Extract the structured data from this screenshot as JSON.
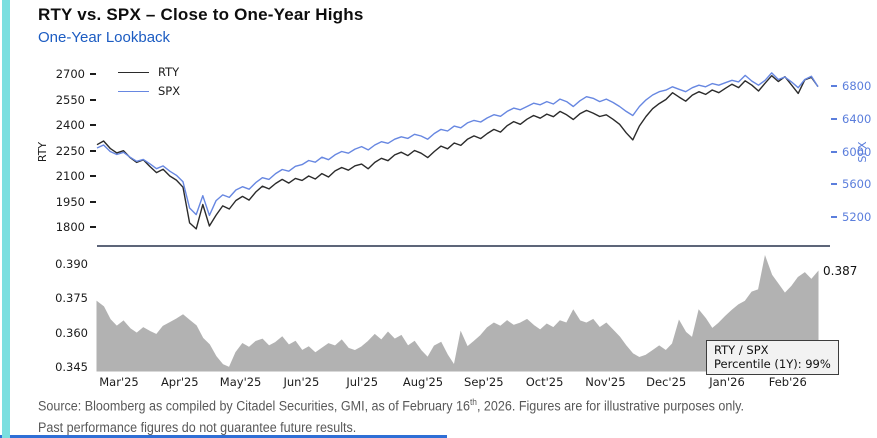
{
  "accent_color": "#7bdfe0",
  "bottom_rule_color": "#2f6fd6",
  "separator_color": "#5d6579",
  "subtitle_color": "#1c5cc2",
  "right_axis_color": "#5b7edc",
  "header": {
    "title": "RTY vs. SPX – Close to One-Year Highs",
    "subtitle": "One-Year Lookback"
  },
  "chart_data": [
    {
      "type": "line",
      "panel": "price",
      "ylabel_left": "RTY",
      "ylabel_right": "SPX",
      "y_left_ticks": [
        "2700",
        "2550",
        "2400",
        "2250",
        "2100",
        "1950",
        "1800"
      ],
      "y_right_ticks": [
        "6800",
        "6400",
        "6000",
        "5600",
        "5200"
      ],
      "y_left_range": [
        1800,
        2700
      ],
      "y_right_range": [
        5200,
        6800
      ],
      "x_labels": [
        "Mar'25",
        "Apr'25",
        "May'25",
        "Jun'25",
        "Jul'25",
        "Aug'25",
        "Sep'25",
        "Oct'25",
        "Nov'25",
        "Dec'25",
        "Jan'26",
        "Feb'26"
      ],
      "legend": [
        {
          "label": "RTY",
          "color": "#2b2b2b"
        },
        {
          "label": "SPX",
          "color": "#6787e1"
        }
      ],
      "series": [
        {
          "name": "RTY",
          "axis": "left",
          "color": "#2b2b2b",
          "values": [
            2290,
            2312,
            2268,
            2242,
            2255,
            2214,
            2186,
            2201,
            2162,
            2126,
            2146,
            2106,
            2082,
            2040,
            1830,
            1795,
            1938,
            1812,
            1876,
            1930,
            1912,
            1962,
            1986,
            1964,
            2012,
            2046,
            2030,
            2062,
            2086,
            2064,
            2092,
            2080,
            2106,
            2088,
            2120,
            2100,
            2136,
            2156,
            2140,
            2166,
            2176,
            2148,
            2186,
            2210,
            2196,
            2230,
            2246,
            2226,
            2256,
            2240,
            2214,
            2250,
            2282,
            2266,
            2300,
            2286,
            2322,
            2342,
            2326,
            2356,
            2380,
            2364,
            2402,
            2426,
            2410,
            2440,
            2462,
            2446,
            2470,
            2455,
            2486,
            2466,
            2438,
            2472,
            2492,
            2476,
            2456,
            2466,
            2440,
            2410,
            2360,
            2318,
            2400,
            2456,
            2502,
            2532,
            2556,
            2596,
            2570,
            2546,
            2582,
            2602,
            2586,
            2612,
            2596,
            2622,
            2646,
            2626,
            2666,
            2640,
            2606,
            2652,
            2696,
            2662,
            2690,
            2642,
            2592,
            2672,
            2686,
            2632
          ]
        },
        {
          "name": "SPX",
          "axis": "right",
          "color": "#6787e1",
          "values": [
            6055,
            6092,
            6012,
            5976,
            6002,
            5942,
            5892,
            5916,
            5862,
            5802,
            5836,
            5772,
            5722,
            5642,
            5322,
            5242,
            5472,
            5232,
            5412,
            5482,
            5452,
            5542,
            5582,
            5552,
            5632,
            5692,
            5672,
            5742,
            5792,
            5772,
            5832,
            5852,
            5902,
            5882,
            5942,
            5912,
            5972,
            6012,
            5992,
            6042,
            6072,
            6032,
            6092,
            6132,
            6112,
            6162,
            6192,
            6172,
            6222,
            6202,
            6162,
            6232,
            6282,
            6262,
            6322,
            6302,
            6362,
            6392,
            6372,
            6422,
            6462,
            6442,
            6502,
            6542,
            6522,
            6562,
            6602,
            6582,
            6622,
            6592,
            6652,
            6622,
            6562,
            6632,
            6682,
            6662,
            6622,
            6652,
            6612,
            6562,
            6502,
            6452,
            6562,
            6642,
            6702,
            6742,
            6762,
            6802,
            6772,
            6742,
            6792,
            6822,
            6802,
            6842,
            6822,
            6852,
            6882,
            6862,
            6942,
            6872,
            6822,
            6882,
            6972,
            6892,
            6922,
            6862,
            6792,
            6892,
            6932,
            6802
          ]
        }
      ]
    },
    {
      "type": "area",
      "panel": "ratio",
      "name": "RTY / SPX",
      "fill_color": "#b2b2b2",
      "y_ticks": [
        "0.390",
        "0.375",
        "0.360",
        "0.345"
      ],
      "y_range": [
        0.345,
        0.39
      ],
      "end_label": "0.387",
      "annotation": {
        "line1": "RTY / SPX",
        "line2": "Percentile (1Y): 99%"
      },
      "values": [
        0.374,
        0.3718,
        0.3662,
        0.3632,
        0.3655,
        0.3622,
        0.3602,
        0.3626,
        0.361,
        0.3596,
        0.3632,
        0.3648,
        0.3664,
        0.3682,
        0.3658,
        0.3635,
        0.358,
        0.3552,
        0.35,
        0.3465,
        0.3452,
        0.3518,
        0.3556,
        0.354,
        0.3566,
        0.3576,
        0.3546,
        0.3562,
        0.3586,
        0.355,
        0.3566,
        0.3526,
        0.3542,
        0.3516,
        0.3536,
        0.3556,
        0.3546,
        0.3572,
        0.3536,
        0.3526,
        0.3542,
        0.3566,
        0.3596,
        0.3572,
        0.3606,
        0.3576,
        0.3592,
        0.3546,
        0.3566,
        0.3526,
        0.3496,
        0.3546,
        0.3562,
        0.3506,
        0.3462,
        0.3606,
        0.3542,
        0.3566,
        0.3592,
        0.3626,
        0.3646,
        0.3632,
        0.3656,
        0.3636,
        0.3646,
        0.3662,
        0.3636,
        0.3616,
        0.3642,
        0.3626,
        0.3656,
        0.3646,
        0.3702,
        0.3656,
        0.3646,
        0.3662,
        0.3626,
        0.3646,
        0.3616,
        0.3586,
        0.3546,
        0.3512,
        0.3496,
        0.3506,
        0.3526,
        0.3546,
        0.3526,
        0.3556,
        0.3656,
        0.3606,
        0.3582,
        0.3702,
        0.3666,
        0.3622,
        0.3646,
        0.3676,
        0.3702,
        0.3726,
        0.3742,
        0.3782,
        0.3792,
        0.3936,
        0.3856,
        0.3816,
        0.3776,
        0.3806,
        0.3846,
        0.3866,
        0.3836,
        0.387
      ]
    }
  ],
  "source": {
    "line1_pre": "Source: Bloomberg as compiled by Citadel Securities, GMI, as of February 16",
    "line1_sup": "th",
    "line1_post": ", 2026. Figures are for illustrative purposes only.",
    "line2": "Past performance figures do not guarantee future results."
  }
}
